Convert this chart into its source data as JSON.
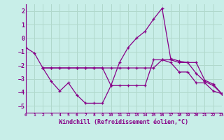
{
  "bg_color": "#c8eee8",
  "grid_color": "#b0d8cc",
  "line_color": "#880088",
  "xlabel": "Windchill (Refroidissement éolien,°C)",
  "xlim": [
    0,
    23
  ],
  "ylim": [
    -5.5,
    2.5
  ],
  "yticks": [
    -5,
    -4,
    -3,
    -2,
    -1,
    0,
    1,
    2
  ],
  "xticks": [
    0,
    1,
    2,
    3,
    4,
    5,
    6,
    7,
    8,
    9,
    10,
    11,
    12,
    13,
    14,
    15,
    16,
    17,
    18,
    19,
    20,
    21,
    22,
    23
  ],
  "series": [
    {
      "x": [
        0,
        1,
        2,
        3,
        4,
        5,
        6,
        7,
        8,
        9,
        10,
        11,
        12,
        13,
        14,
        15,
        16,
        17,
        18,
        19,
        20,
        21,
        22,
        23
      ],
      "y": [
        -0.7,
        -1.1,
        -2.2,
        -3.2,
        -3.9,
        -3.3,
        -4.2,
        -4.8,
        -4.8,
        -4.8,
        -3.5,
        -1.8,
        -0.7,
        0.0,
        0.5,
        1.4,
        2.2,
        -1.5,
        -1.7,
        -1.8,
        -1.8,
        -3.1,
        -3.4,
        -4.1
      ]
    },
    {
      "x": [
        2,
        3,
        4,
        5,
        6,
        7,
        8,
        9,
        10,
        11,
        12,
        13,
        14,
        15,
        16,
        17,
        18,
        19,
        20,
        21,
        22,
        23
      ],
      "y": [
        -2.2,
        -2.2,
        -2.2,
        -2.2,
        -2.2,
        -2.2,
        -2.2,
        -2.2,
        -2.2,
        -2.2,
        -2.2,
        -2.2,
        -2.2,
        -2.2,
        -1.6,
        -1.6,
        -1.8,
        -1.8,
        -2.6,
        -3.2,
        -3.5,
        -4.1
      ]
    },
    {
      "x": [
        2,
        3,
        4,
        5,
        6,
        7,
        8,
        9,
        10,
        11,
        12,
        13,
        14,
        15,
        16,
        17,
        18,
        19,
        20,
        21,
        22,
        23
      ],
      "y": [
        -2.2,
        -2.2,
        -2.2,
        -2.2,
        -2.2,
        -2.2,
        -2.2,
        -2.2,
        -3.5,
        -3.5,
        -3.5,
        -3.5,
        -3.5,
        -1.6,
        -1.6,
        -1.8,
        -2.5,
        -2.5,
        -3.3,
        -3.3,
        -3.9,
        -4.1
      ]
    }
  ]
}
